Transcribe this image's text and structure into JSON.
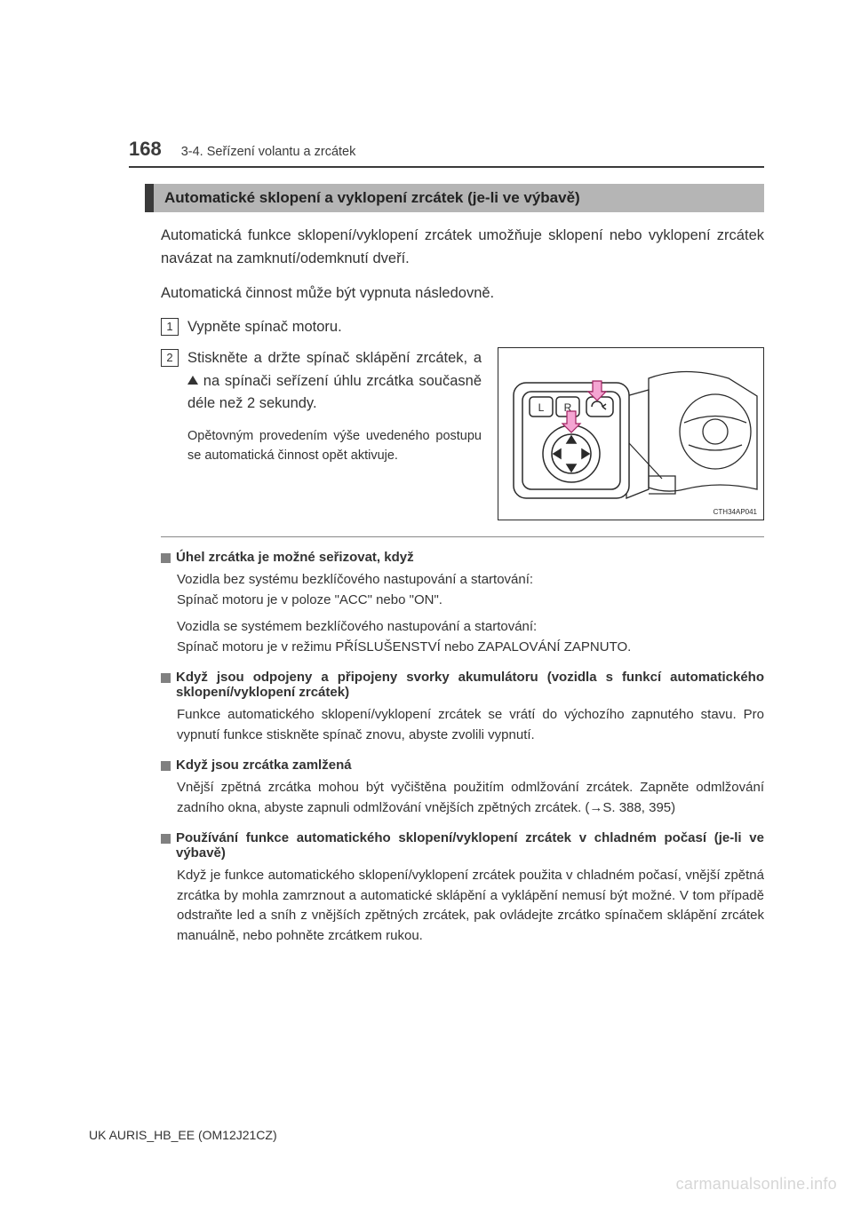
{
  "page": {
    "number": "168",
    "breadcrumb": "3-4. Seřízení volantu a zrcátek",
    "footer_code": "UK AURIS_HB_EE (OM12J21CZ)",
    "watermark": "carmanualsonline.info"
  },
  "section": {
    "heading": "Automatické sklopení a vyklopení zrcátek (je-li ve výbavě)",
    "intro": "Automatická funkce sklopení/vyklopení zrcátek umožňuje sklopení nebo vyklopení zrcátek navázat na zamknutí/odemknutí dveří.",
    "lead": "Automatická činnost může být vypnuta následovně.",
    "step1_num": "1",
    "step1": "Vypněte spínač motoru.",
    "step2_num": "2",
    "step2_a": "Stiskněte a držte spínač sklápění zrcátek, a ",
    "step2_b": " na spínači seřízení úhlu zrcátka současně déle než 2 sekundy.",
    "step2_note": "Opětovným provedením výše uvedeného postupu se automatická činnost opět aktivuje.",
    "figure_code": "CTH34AP041",
    "figure_labels": {
      "L": "L",
      "R": "R"
    }
  },
  "subs": [
    {
      "title": "Úhel zrcátka je možné seřizovat, když",
      "paras": [
        "Vozidla bez systému bezklíčového nastupování a startování:\nSpínač motoru je v poloze \"ACC\" nebo \"ON\".",
        "Vozidla se systémem bezklíčového nastupování a startování:\nSpínač motoru je v režimu PŘÍSLUŠENSTVÍ nebo ZAPALOVÁNÍ ZAPNUTO."
      ]
    },
    {
      "title": "Když jsou odpojeny a připojeny svorky akumulátoru (vozidla s funkcí automatického sklopení/vyklopení zrcátek)",
      "paras": [
        "Funkce automatického sklopení/vyklopení zrcátek se vrátí do výchozího zapnutého stavu. Pro vypnutí funkce stiskněte spínač znovu, abyste zvolili vypnutí."
      ]
    },
    {
      "title": "Když jsou zrcátka zamlžená",
      "paras": [
        "Vnější zpětná zrcátka mohou být vyčištěna použitím odmlžování zrcátek. Zapněte odmlžování zadního okna, abyste zapnuli odmlžování vnějších zpětných zrcátek. (→S. 388, 395)"
      ]
    },
    {
      "title": "Používání funkce automatického sklopení/vyklopení zrcátek v chladném počasí (je-li ve výbavě)",
      "paras": [
        "Když je funkce automatického sklopení/vyklopení zrcátek použita v chladném počasí, vnější zpětná zrcátka by mohla zamrznout a automatické sklápění a vyklápění nemusí být možné. V tom případě odstraňte led a sníh z vnějších zpětných zrcátek, pak ovládejte zrcátko spínačem sklápění zrcátek manuálně, nebo pohněte zrcátkem rukou."
      ]
    }
  ],
  "diagram": {
    "bg": "#ffffff",
    "stroke": "#2a2a2a",
    "arrow_fill": "#f4a5d2",
    "arrow_stroke": "#a02060",
    "panel_fill": "#ffffff"
  }
}
